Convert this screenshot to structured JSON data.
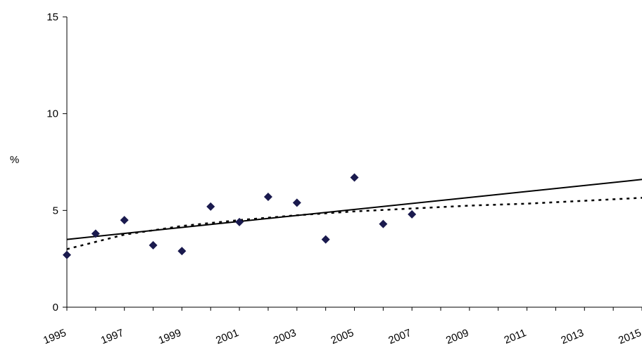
{
  "chart_data": {
    "type": "scatter",
    "title": "",
    "xlabel": "",
    "ylabel": "%",
    "xlim": [
      1995,
      2015
    ],
    "ylim": [
      0,
      15
    ],
    "x_ticks": [
      1995,
      1997,
      1999,
      2001,
      2003,
      2005,
      2007,
      2009,
      2011,
      2013,
      2015
    ],
    "x_tick_labels": [
      "1995",
      "1997",
      "1999",
      "2001",
      "2003",
      "2005",
      "2007",
      "2009",
      "2011",
      "2013",
      "2015"
    ],
    "y_ticks": [
      0,
      5,
      10,
      15
    ],
    "y_tick_labels": [
      "0",
      "5",
      "10",
      "15"
    ],
    "grid": false,
    "legend": "none",
    "series": [
      {
        "type": "scatter",
        "marker": "diamond",
        "color": "#1a1a4e",
        "points": [
          {
            "x": 1995,
            "y": 2.7
          },
          {
            "x": 1996,
            "y": 3.8
          },
          {
            "x": 1997,
            "y": 4.5
          },
          {
            "x": 1998,
            "y": 3.2
          },
          {
            "x": 1999,
            "y": 2.9
          },
          {
            "x": 2000,
            "y": 5.2
          },
          {
            "x": 2001,
            "y": 4.4
          },
          {
            "x": 2002,
            "y": 5.7
          },
          {
            "x": 2003,
            "y": 5.4
          },
          {
            "x": 2004,
            "y": 3.5
          },
          {
            "x": 2005,
            "y": 6.7
          },
          {
            "x": 2006,
            "y": 4.3
          },
          {
            "x": 2007,
            "y": 4.8
          }
        ]
      },
      {
        "type": "line",
        "style": "solid",
        "color": "#000000",
        "points": [
          {
            "x": 1995,
            "y": 3.5
          },
          {
            "x": 2015,
            "y": 6.6
          }
        ]
      },
      {
        "type": "line",
        "style": "dotted",
        "color": "#000000",
        "points": [
          {
            "x": 1995,
            "y": 3.0
          },
          {
            "x": 1997,
            "y": 3.75
          },
          {
            "x": 1999,
            "y": 4.2
          },
          {
            "x": 2001,
            "y": 4.5
          },
          {
            "x": 2003,
            "y": 4.75
          },
          {
            "x": 2005,
            "y": 4.95
          },
          {
            "x": 2007,
            "y": 5.1
          },
          {
            "x": 2009,
            "y": 5.25
          },
          {
            "x": 2011,
            "y": 5.35
          },
          {
            "x": 2013,
            "y": 5.5
          },
          {
            "x": 2015,
            "y": 5.65
          }
        ]
      }
    ]
  }
}
